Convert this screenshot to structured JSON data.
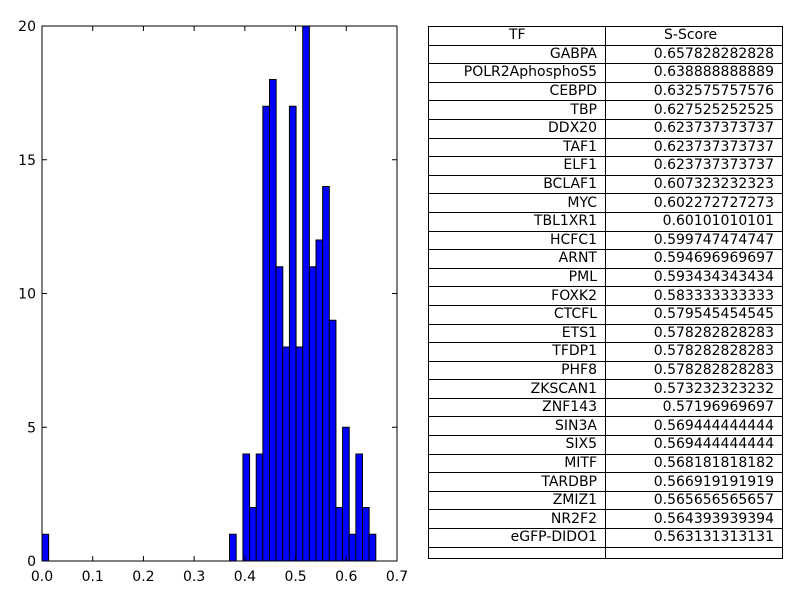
{
  "chart_data": [
    {
      "type": "bar",
      "title": "",
      "xlabel": "",
      "ylabel": "",
      "xlim": [
        0.0,
        0.7
      ],
      "ylim": [
        0,
        20
      ],
      "xticks": [
        "0.0",
        "0.1",
        "0.2",
        "0.3",
        "0.4",
        "0.5",
        "0.6",
        "0.7"
      ],
      "yticks": [
        "0",
        "5",
        "10",
        "15",
        "20"
      ],
      "bar_color": "#0000ff",
      "bin_width": 0.0131,
      "bins": [
        {
          "x": 0.0,
          "count": 1
        },
        {
          "x": 0.3698,
          "count": 1
        },
        {
          "x": 0.3962,
          "count": 4
        },
        {
          "x": 0.4093,
          "count": 2
        },
        {
          "x": 0.4224,
          "count": 4
        },
        {
          "x": 0.4355,
          "count": 17
        },
        {
          "x": 0.4486,
          "count": 18
        },
        {
          "x": 0.4617,
          "count": 11
        },
        {
          "x": 0.4748,
          "count": 8
        },
        {
          "x": 0.4879,
          "count": 17
        },
        {
          "x": 0.501,
          "count": 8
        },
        {
          "x": 0.5141,
          "count": 20
        },
        {
          "x": 0.5272,
          "count": 11
        },
        {
          "x": 0.5403,
          "count": 12
        },
        {
          "x": 0.5534,
          "count": 14
        },
        {
          "x": 0.5665,
          "count": 9
        },
        {
          "x": 0.5796,
          "count": 2
        },
        {
          "x": 0.5927,
          "count": 5
        },
        {
          "x": 0.6058,
          "count": 1
        },
        {
          "x": 0.6189,
          "count": 4
        },
        {
          "x": 0.632,
          "count": 2
        },
        {
          "x": 0.6451,
          "count": 1
        }
      ]
    },
    {
      "type": "table",
      "columns": [
        "TF",
        "S-Score"
      ],
      "rows": [
        [
          "GABPA",
          "0.657828282828"
        ],
        [
          "POLR2AphosphoS5",
          "0.638888888889"
        ],
        [
          "CEBPD",
          "0.632575757576"
        ],
        [
          "TBP",
          "0.627525252525"
        ],
        [
          "DDX20",
          "0.623737373737"
        ],
        [
          "TAF1",
          "0.623737373737"
        ],
        [
          "ELF1",
          "0.623737373737"
        ],
        [
          "BCLAF1",
          "0.607323232323"
        ],
        [
          "MYC",
          "0.602272727273"
        ],
        [
          "TBL1XR1",
          "0.60101010101"
        ],
        [
          "HCFC1",
          "0.599747474747"
        ],
        [
          "ARNT",
          "0.594696969697"
        ],
        [
          "PML",
          "0.593434343434"
        ],
        [
          "FOXK2",
          "0.583333333333"
        ],
        [
          "CTCFL",
          "0.579545454545"
        ],
        [
          "ETS1",
          "0.578282828283"
        ],
        [
          "TFDP1",
          "0.578282828283"
        ],
        [
          "PHF8",
          "0.578282828283"
        ],
        [
          "ZKSCAN1",
          "0.573232323232"
        ],
        [
          "ZNF143",
          "0.57196969697"
        ],
        [
          "SIN3A",
          "0.569444444444"
        ],
        [
          "SIX5",
          "0.569444444444"
        ],
        [
          "MITF",
          "0.568181818182"
        ],
        [
          "TARDBP",
          "0.566919191919"
        ],
        [
          "ZMIZ1",
          "0.565656565657"
        ],
        [
          "NR2F2",
          "0.564393939394"
        ],
        [
          "eGFP-DIDO1",
          "0.563131313131"
        ]
      ]
    }
  ]
}
